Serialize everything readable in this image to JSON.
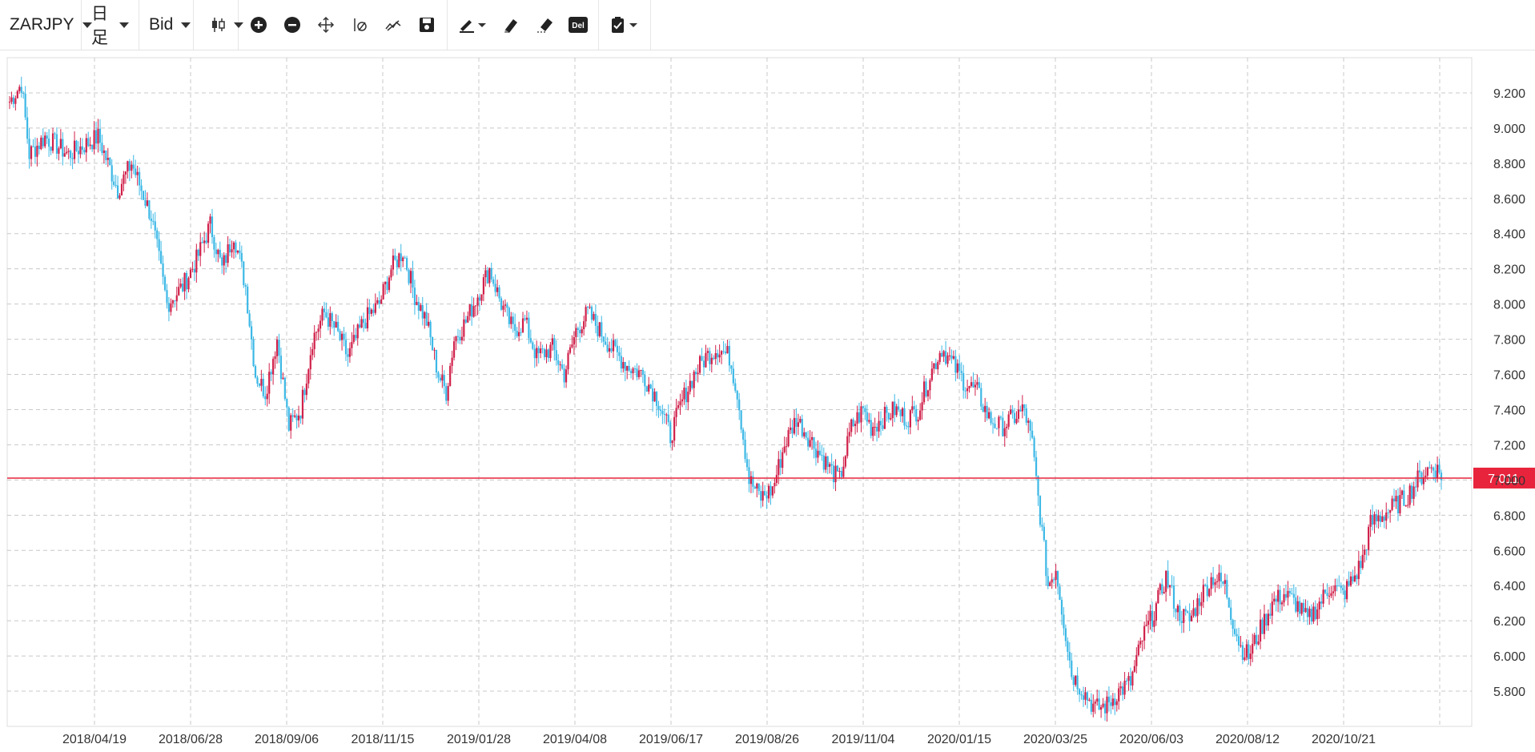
{
  "toolbar": {
    "symbol": "ZARJPY",
    "period": "日足",
    "price_type": "Bid",
    "del_label": "Del",
    "icons": [
      "candlestick-icon",
      "zoom-in-icon",
      "zoom-out-icon",
      "move-icon",
      "scale-reset-icon",
      "line-style-icon",
      "save-icon",
      "draw-pen-icon",
      "highlighter-icon",
      "eraser-icon",
      "delete-icon",
      "clipboard-check-icon"
    ]
  },
  "colors": {
    "up": "#d0204a",
    "down": "#3cb8e6",
    "price_line": "#e8243c",
    "grid": "#c8c8c8"
  },
  "chart_data": {
    "type": "ohlc",
    "symbol": "ZARJPY",
    "timeframe": "daily",
    "current_price": "7.011",
    "ylim": [
      5.6,
      9.4
    ],
    "y_ticks": [
      "9.200",
      "9.000",
      "8.800",
      "8.600",
      "8.400",
      "8.200",
      "8.000",
      "7.800",
      "7.600",
      "7.400",
      "7.200",
      "7.000",
      "6.800",
      "6.600",
      "6.400",
      "6.200",
      "6.000",
      "5.800"
    ],
    "x_ticks": [
      "2018/04/19",
      "2018/06/28",
      "2018/09/06",
      "2018/11/15",
      "2019/01/28",
      "2019/04/08",
      "2019/06/17",
      "2019/08/26",
      "2019/11/04",
      "2020/01/15",
      "2020/03/25",
      "2020/06/03",
      "2020/08/12",
      "2020/10/21"
    ],
    "grid": true,
    "anchors": [
      [
        0,
        9.15
      ],
      [
        6,
        9.25
      ],
      [
        10,
        8.85
      ],
      [
        18,
        8.95
      ],
      [
        30,
        8.85
      ],
      [
        45,
        8.95
      ],
      [
        55,
        8.65
      ],
      [
        62,
        8.8
      ],
      [
        72,
        8.5
      ],
      [
        80,
        8.0
      ],
      [
        88,
        8.1
      ],
      [
        95,
        8.25
      ],
      [
        102,
        8.45
      ],
      [
        108,
        8.2
      ],
      [
        114,
        8.4
      ],
      [
        120,
        8.1
      ],
      [
        125,
        7.6
      ],
      [
        130,
        7.5
      ],
      [
        136,
        7.8
      ],
      [
        142,
        7.3
      ],
      [
        148,
        7.4
      ],
      [
        154,
        7.8
      ],
      [
        160,
        7.95
      ],
      [
        166,
        7.85
      ],
      [
        172,
        7.7
      ],
      [
        180,
        7.9
      ],
      [
        188,
        8.0
      ],
      [
        194,
        8.2
      ],
      [
        200,
        8.3
      ],
      [
        206,
        8.05
      ],
      [
        212,
        7.9
      ],
      [
        218,
        7.6
      ],
      [
        222,
        7.5
      ],
      [
        226,
        7.8
      ],
      [
        232,
        7.9
      ],
      [
        238,
        8.05
      ],
      [
        244,
        8.2
      ],
      [
        250,
        8.0
      ],
      [
        256,
        7.85
      ],
      [
        262,
        7.9
      ],
      [
        268,
        7.7
      ],
      [
        276,
        7.75
      ],
      [
        282,
        7.6
      ],
      [
        288,
        7.85
      ],
      [
        294,
        7.95
      ],
      [
        300,
        7.85
      ],
      [
        306,
        7.75
      ],
      [
        314,
        7.65
      ],
      [
        322,
        7.6
      ],
      [
        330,
        7.45
      ],
      [
        336,
        7.25
      ],
      [
        342,
        7.45
      ],
      [
        348,
        7.6
      ],
      [
        354,
        7.7
      ],
      [
        360,
        7.75
      ],
      [
        366,
        7.7
      ],
      [
        370,
        7.5
      ],
      [
        376,
        7.0
      ],
      [
        382,
        6.9
      ],
      [
        388,
        6.95
      ],
      [
        394,
        7.2
      ],
      [
        400,
        7.35
      ],
      [
        406,
        7.25
      ],
      [
        412,
        7.15
      ],
      [
        418,
        7.05
      ],
      [
        422,
        7.0
      ],
      [
        428,
        7.3
      ],
      [
        434,
        7.4
      ],
      [
        438,
        7.3
      ],
      [
        444,
        7.35
      ],
      [
        450,
        7.4
      ],
      [
        456,
        7.35
      ],
      [
        462,
        7.4
      ],
      [
        468,
        7.6
      ],
      [
        474,
        7.75
      ],
      [
        480,
        7.65
      ],
      [
        486,
        7.55
      ],
      [
        492,
        7.5
      ],
      [
        498,
        7.35
      ],
      [
        504,
        7.3
      ],
      [
        510,
        7.35
      ],
      [
        516,
        7.4
      ],
      [
        520,
        7.2
      ],
      [
        524,
        6.8
      ],
      [
        528,
        6.4
      ],
      [
        532,
        6.5
      ],
      [
        536,
        6.2
      ],
      [
        540,
        5.9
      ],
      [
        546,
        5.8
      ],
      [
        552,
        5.7
      ],
      [
        558,
        5.72
      ],
      [
        564,
        5.8
      ],
      [
        570,
        5.85
      ],
      [
        576,
        6.1
      ],
      [
        582,
        6.25
      ],
      [
        588,
        6.45
      ],
      [
        594,
        6.25
      ],
      [
        600,
        6.2
      ],
      [
        606,
        6.35
      ],
      [
        612,
        6.45
      ],
      [
        618,
        6.4
      ],
      [
        622,
        6.2
      ],
      [
        626,
        6.05
      ],
      [
        630,
        6.0
      ],
      [
        636,
        6.15
      ],
      [
        642,
        6.3
      ],
      [
        648,
        6.35
      ],
      [
        654,
        6.3
      ],
      [
        660,
        6.2
      ],
      [
        666,
        6.3
      ],
      [
        672,
        6.4
      ],
      [
        678,
        6.35
      ],
      [
        684,
        6.45
      ],
      [
        688,
        6.55
      ],
      [
        692,
        6.75
      ],
      [
        698,
        6.8
      ],
      [
        704,
        6.85
      ],
      [
        710,
        6.9
      ],
      [
        716,
        7.0
      ],
      [
        720,
        7.05
      ],
      [
        724,
        7.08
      ],
      [
        728,
        7.03
      ]
    ]
  }
}
